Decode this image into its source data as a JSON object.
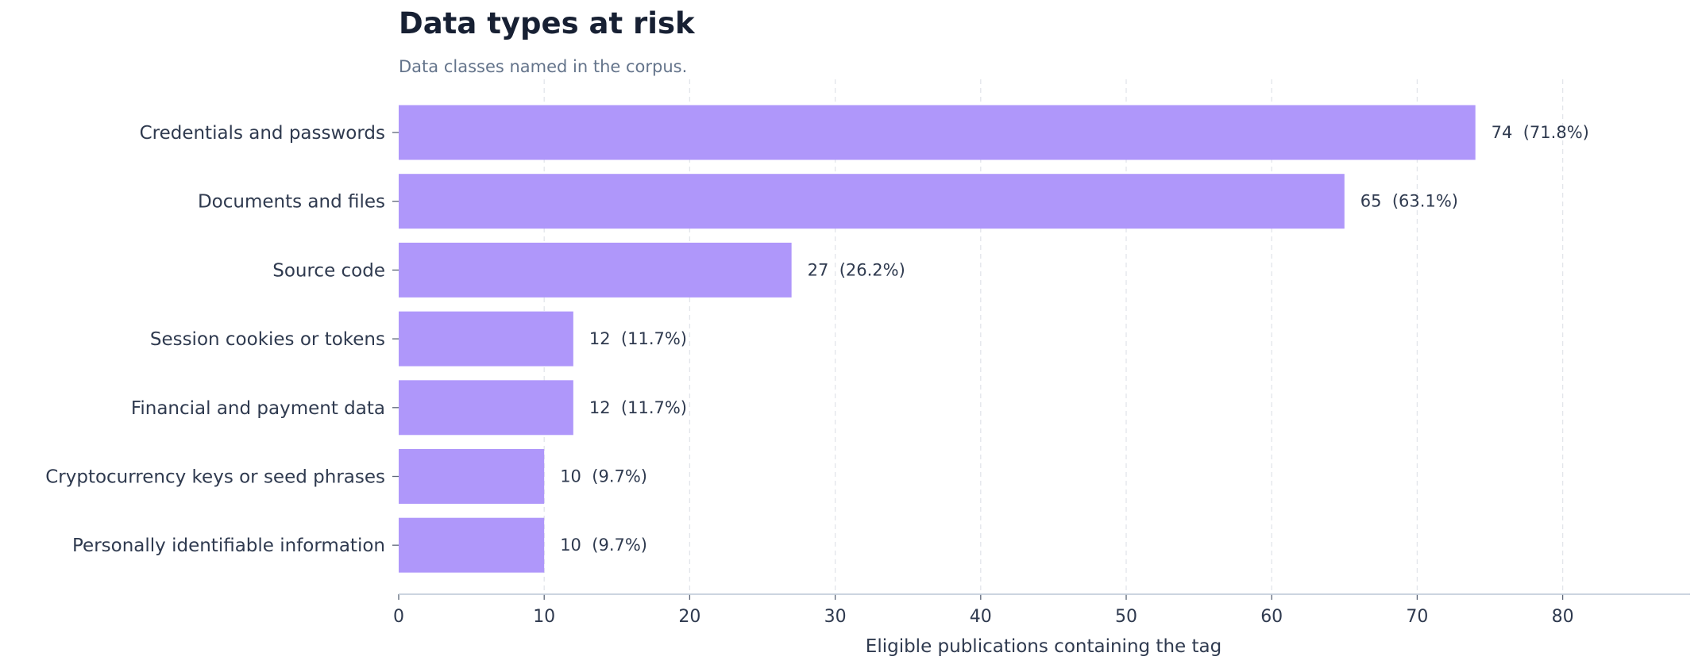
{
  "chart_data": {
    "type": "bar",
    "orientation": "horizontal",
    "title": "Data types at risk",
    "subtitle": "Data classes named in the corpus.",
    "xlabel": "Eligible publications containing the tag",
    "ylabel": "",
    "categories": [
      "Credentials and passwords",
      "Documents and files",
      "Source code",
      "Session cookies or tokens",
      "Financial and payment data",
      "Cryptocurrency keys or seed phrases",
      "Personally identifiable information"
    ],
    "values": [
      74,
      65,
      27,
      12,
      12,
      10,
      10
    ],
    "data_labels": [
      "74  (71.8%)",
      "65  (63.1%)",
      "27  (26.2%)",
      "12  (11.7%)",
      "12  (11.7%)",
      "10  (9.7%)",
      "10  (9.7%)"
    ],
    "xticks": [
      0,
      10,
      20,
      30,
      40,
      50,
      60,
      70,
      80
    ],
    "xlim": [
      0,
      88.8
    ],
    "grid": "vertical dashed",
    "legend": "none",
    "colors": {
      "bar": "#af97fa",
      "text": "#2f3a4f",
      "title": "#172033",
      "subtitle": "#64748b",
      "grid": "#e2e5ea",
      "axis": "#c4cfdb"
    }
  }
}
